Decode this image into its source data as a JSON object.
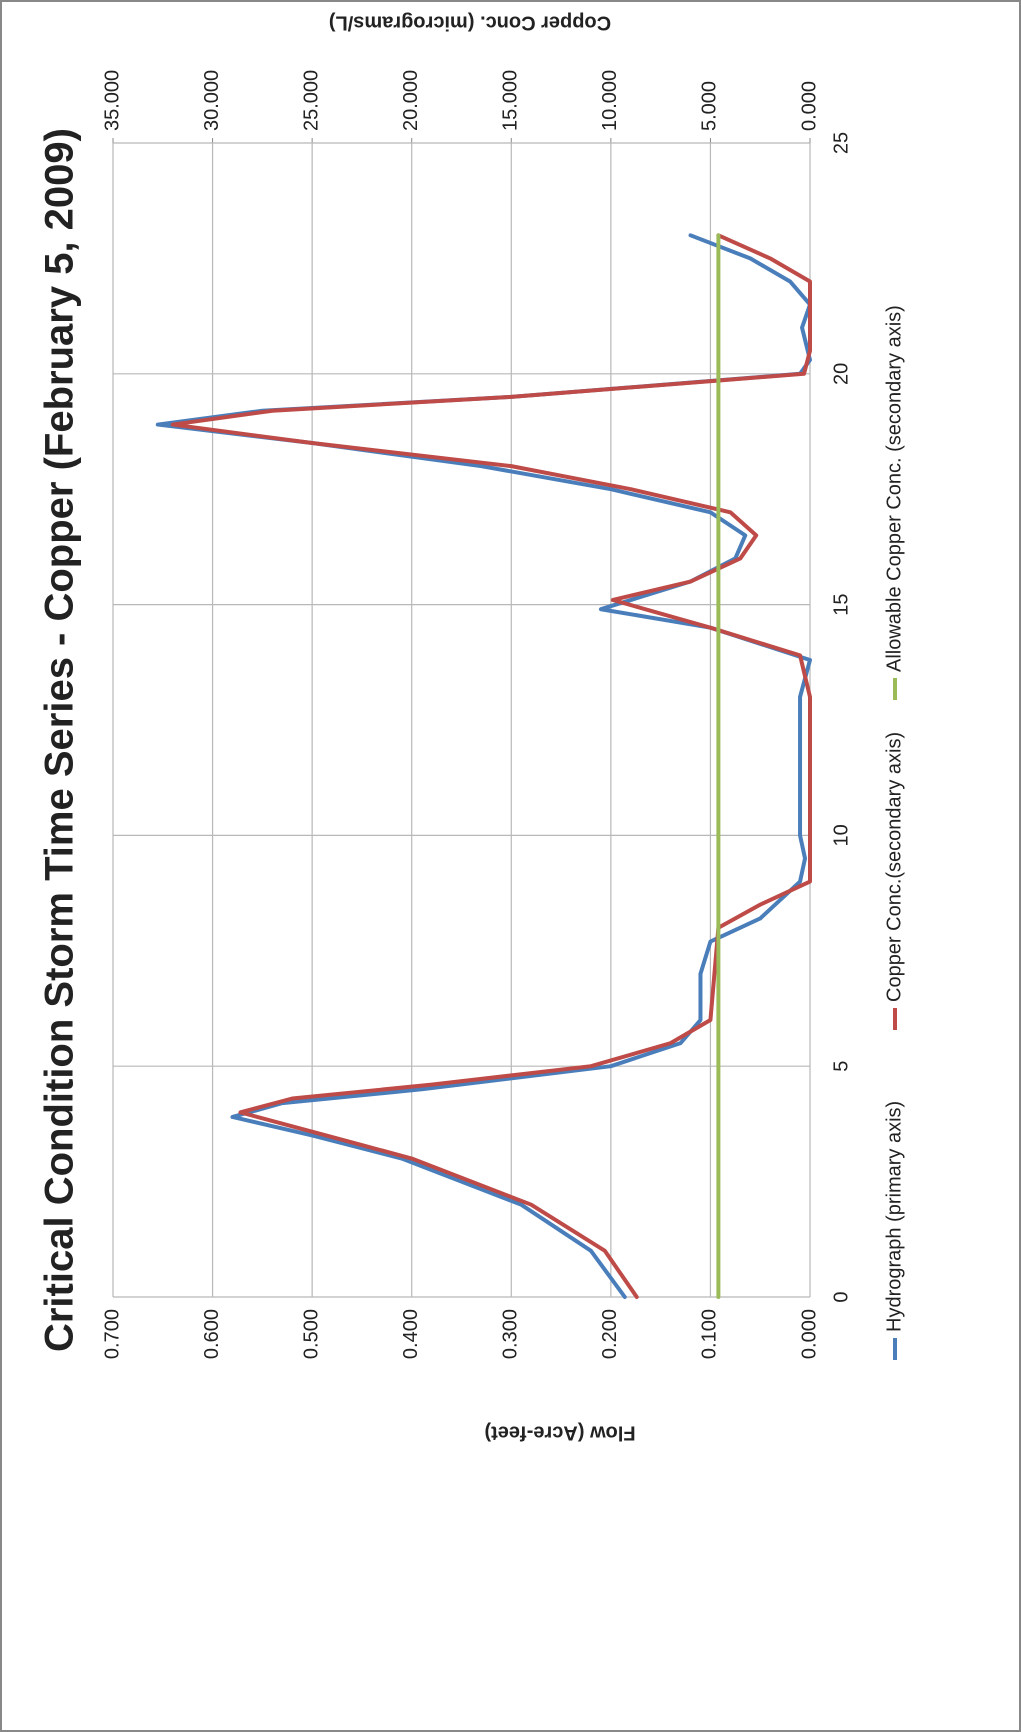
{
  "chart_data": {
    "type": "line",
    "title": "Critical Condition Storm Time Series - Copper (February 5, 2009)",
    "y_label": "Flow (Acre-feet)",
    "y2_label": "Copper Conc. (micrograms/L)",
    "xlim": [
      0,
      25
    ],
    "xticks": [
      0,
      5,
      10,
      15,
      20,
      25
    ],
    "ylim": [
      0,
      0.7
    ],
    "yticks": [
      {
        "value": 0,
        "label": "0.000"
      },
      {
        "value": 0.1,
        "label": "0.100"
      },
      {
        "value": 0.2,
        "label": "0.200"
      },
      {
        "value": 0.3,
        "label": "0.300"
      },
      {
        "value": 0.4,
        "label": "0.400"
      },
      {
        "value": 0.5,
        "label": "0.500"
      },
      {
        "value": 0.6,
        "label": "0.600"
      },
      {
        "value": 0.7,
        "label": "0.700"
      }
    ],
    "y2lim": [
      0,
      35
    ],
    "y2ticks": [
      {
        "value": 0,
        "label": "0.000"
      },
      {
        "value": 5,
        "label": "5.000"
      },
      {
        "value": 10,
        "label": "10.000"
      },
      {
        "value": 15,
        "label": "15.000"
      },
      {
        "value": 20,
        "label": "20.000"
      },
      {
        "value": 25,
        "label": "25.000"
      },
      {
        "value": 30,
        "label": "30.000"
      },
      {
        "value": 35,
        "label": "35.000"
      }
    ],
    "grid": true,
    "series": [
      {
        "name": "Hydrograph (primary axis)",
        "color": "#4a7ebb",
        "x": [
          0,
          1,
          2,
          3,
          3.5,
          3.9,
          4.2,
          4.5,
          5,
          5.5,
          6,
          7,
          7.7,
          8.2,
          9,
          9.5,
          10,
          11,
          12,
          13,
          13.8,
          14.5,
          14.9,
          15.5,
          16,
          16.5,
          17,
          17.5,
          18,
          18.5,
          18.9,
          19.2,
          19.5,
          20,
          20.3,
          21,
          21.5,
          22,
          22.5,
          23
        ],
        "values": [
          0.186,
          0.22,
          0.29,
          0.41,
          0.5,
          0.58,
          0.53,
          0.39,
          0.2,
          0.13,
          0.11,
          0.11,
          0.1,
          0.05,
          0.01,
          0.005,
          0.01,
          0.01,
          0.01,
          0.01,
          0.0,
          0.1,
          0.21,
          0.12,
          0.075,
          0.065,
          0.1,
          0.2,
          0.33,
          0.5,
          0.655,
          0.55,
          0.3,
          0.01,
          0.0,
          0.008,
          0.0,
          0.02,
          0.06,
          0.12
        ]
      },
      {
        "name": "Copper Conc.(secondary axis)",
        "color": "#be4b48",
        "axis": "y2",
        "x": [
          0,
          1,
          2,
          3,
          3.5,
          4,
          4.3,
          4.6,
          5,
          5.5,
          6,
          7,
          8,
          8.5,
          9,
          10,
          11,
          12,
          13,
          13.9,
          14.5,
          15.1,
          15.5,
          16,
          16.5,
          17,
          17.5,
          18,
          18.5,
          18.9,
          19.2,
          19.5,
          20,
          20.5,
          21,
          22,
          22.5,
          23
        ],
        "values": [
          8.7,
          10.3,
          14,
          20,
          24.3,
          28.6,
          26,
          19,
          11,
          7,
          5,
          4.8,
          4.6,
          2.5,
          0,
          0,
          0,
          0,
          0,
          0.5,
          5,
          9.9,
          6,
          3.5,
          2.7,
          4,
          9,
          15,
          25,
          32,
          27,
          15,
          0.3,
          0,
          0,
          0,
          2,
          4.6
        ]
      },
      {
        "name": "Allowable Copper Conc. (secondary axis)",
        "color": "#9bbb59",
        "axis": "y2",
        "x": [
          0,
          23
        ],
        "values": [
          4.6,
          4.6
        ]
      }
    ]
  }
}
